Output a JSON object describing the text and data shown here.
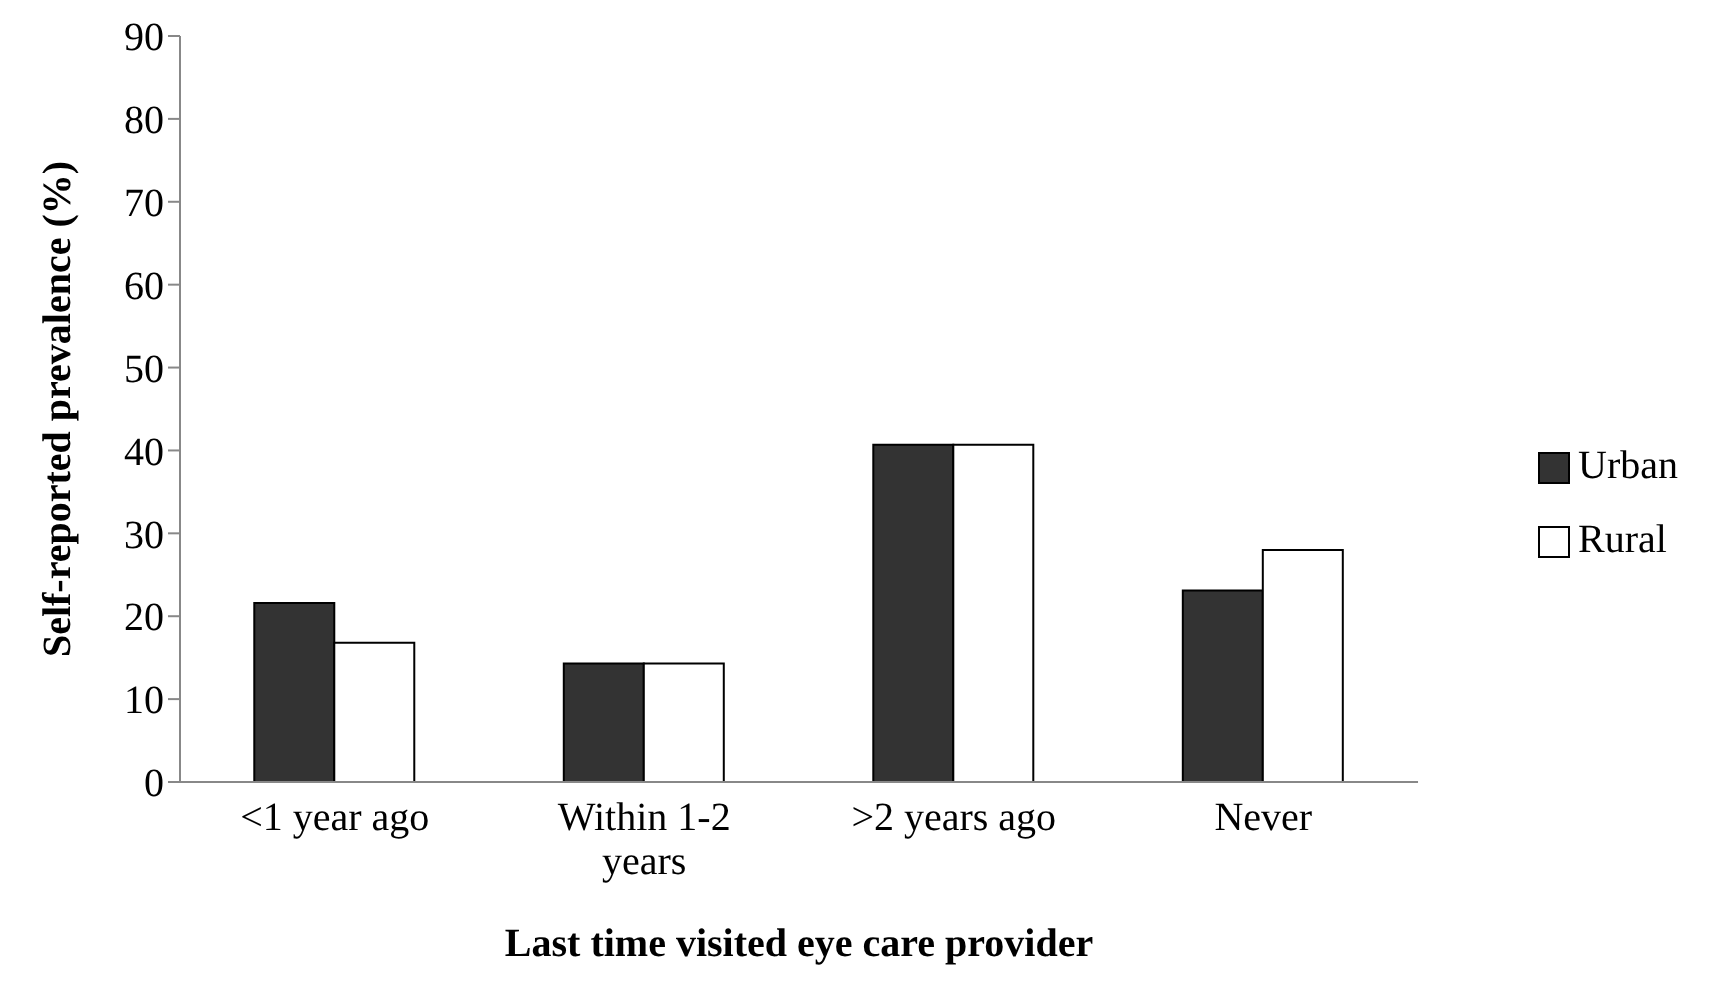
{
  "chart_data": {
    "type": "bar",
    "xlabel": "Last time visited eye care provider",
    "ylabel": "Self-reported prevalence (%)",
    "categories": [
      "<1 year ago",
      "Within 1-2 years",
      ">2 years ago",
      "Never"
    ],
    "series": [
      {
        "name": "Urban",
        "color": "#333333",
        "values": [
          21.6,
          14.3,
          40.7,
          23.1
        ]
      },
      {
        "name": "Rural",
        "color": "#ffffff",
        "values": [
          16.8,
          14.3,
          40.7,
          28.0
        ]
      }
    ],
    "ylim": [
      0,
      90
    ],
    "yticks": [
      0,
      10,
      20,
      30,
      40,
      50,
      60,
      70,
      80,
      90
    ],
    "grid": false,
    "legend": "right"
  }
}
